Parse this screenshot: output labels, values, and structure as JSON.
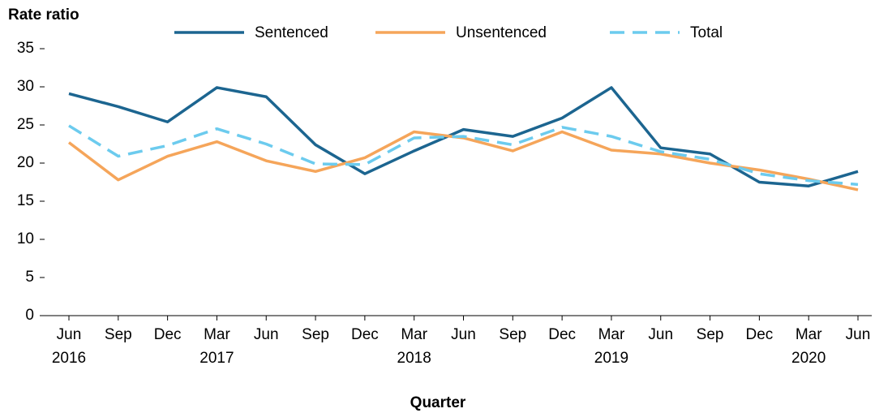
{
  "chart_data": {
    "type": "line",
    "title": "Rate ratio",
    "x_label": "Quarter",
    "categories": [
      "Jun\n2016",
      "Sep",
      "Dec",
      "Mar\n2017",
      "Jun",
      "Sep",
      "Dec",
      "Mar\n2018",
      "Jun",
      "Sep",
      "Dec",
      "Mar\n2019",
      "Jun",
      "Sep",
      "Dec",
      "Mar\n2020",
      "Jun"
    ],
    "series": [
      {
        "name": "Sentenced",
        "color": "#1c6590",
        "dash": "solid",
        "values": [
          29.1,
          27.4,
          25.4,
          29.9,
          28.7,
          22.4,
          18.6,
          21.6,
          24.4,
          23.5,
          25.9,
          29.9,
          22.0,
          21.2,
          17.5,
          17.0,
          18.9
        ]
      },
      {
        "name": "Unsentenced",
        "color": "#f5a55a",
        "dash": "solid",
        "values": [
          22.7,
          17.8,
          20.9,
          22.8,
          20.3,
          18.9,
          20.7,
          24.1,
          23.3,
          21.6,
          24.1,
          21.7,
          21.2,
          20.0,
          19.1,
          17.9,
          16.5
        ]
      },
      {
        "name": "Total",
        "color": "#6ccbee",
        "dash": "dashed",
        "values": [
          24.9,
          20.9,
          22.3,
          24.5,
          22.5,
          19.9,
          19.8,
          23.3,
          23.5,
          22.4,
          24.7,
          23.5,
          21.5,
          20.5,
          18.6,
          17.7,
          17.2
        ]
      }
    ],
    "ylim": [
      0,
      35
    ],
    "yticks": [
      0,
      5,
      10,
      15,
      20,
      25,
      30,
      35
    ],
    "grid": false,
    "legend": "top"
  }
}
